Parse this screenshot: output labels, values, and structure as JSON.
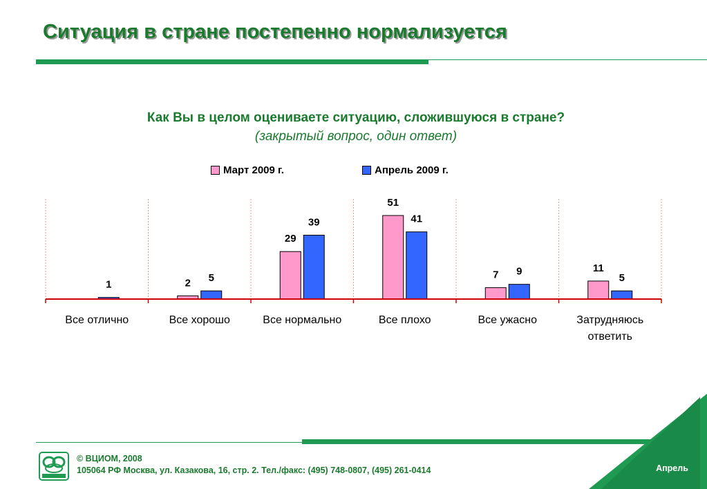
{
  "slide": {
    "title": "Ситуация в стране постепенно нормализуется",
    "question": "Как Вы в целом оцениваете ситуацию, сложившуюся в стране?",
    "question_note": "(закрытый вопрос, один ответ)"
  },
  "footer": {
    "copyright": "© ВЦИОМ, 2008",
    "address": "105064 РФ Москва, ул. Казакова, 16, стр. 2.  Тел./факс: (495) 748-0807, (495) 261-0414",
    "month": "Апрель"
  },
  "colors": {
    "accent": "#1f9a52",
    "title": "#1a7a2e",
    "march_bar": "#ff99cc",
    "april_bar": "#3366ff",
    "axis": "#cc0000"
  },
  "chart_data": {
    "type": "bar",
    "title": "",
    "xlabel": "",
    "ylabel": "",
    "ylim": [
      0,
      51
    ],
    "grid": false,
    "legend": "top",
    "categories": [
      "Все отлично",
      "Все хорошо",
      "Все нормально",
      "Все плохо",
      "Все  ужасно",
      "Затрудняюсь ответить"
    ],
    "series": [
      {
        "name": "Март 2009 г.",
        "values": [
          null,
          2,
          29,
          51,
          7,
          11
        ],
        "labels": [
          "",
          "2",
          "29",
          "51",
          "7",
          "11"
        ]
      },
      {
        "name": "Апрель 2009 г.",
        "values": [
          1,
          5,
          39,
          41,
          9,
          5
        ],
        "labels": [
          "1",
          "5",
          "39",
          "41",
          "9",
          "5"
        ]
      }
    ]
  }
}
